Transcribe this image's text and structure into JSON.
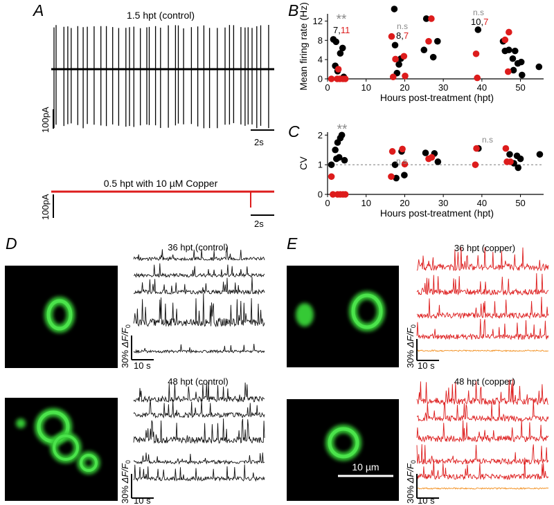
{
  "colors": {
    "control": "#000000",
    "copper": "#dd1c1c",
    "silent": "#f28e1c",
    "sig_gray": "#888888",
    "cell_green": "#3cd23c",
    "cell_bg": "#000000"
  },
  "panels": {
    "A": {
      "label": "A",
      "top_title": "1.5 hpt (control)",
      "top_scale_y": "100pA",
      "top_scale_x": "2s",
      "bottom_title": "0.5 hpt with 10 µM Copper",
      "bottom_scale_y": "100pA",
      "bottom_scale_x": "2s"
    },
    "B": {
      "label": "B",
      "stars": "**",
      "ns1": "n.s",
      "ns2": "n.s",
      "n1_black": "7,",
      "n1_red": "11",
      "n2_black": "8,",
      "n2_red": "7",
      "n3_black": "10,",
      "n3_red": "7"
    },
    "C": {
      "label": "C",
      "stars": "**",
      "ns1": "n.s",
      "ns2": "n.s"
    },
    "D": {
      "label": "D",
      "title1": "36 hpt (control)",
      "title2": "48 hpt (control)",
      "scale_y_pre": "30% ",
      "scale_y_var": "ΔF/F",
      "scale_y_sub": "0",
      "scale_x": "10 s"
    },
    "E": {
      "label": "E",
      "title1": "36 hpt (copper)",
      "title2": "48 hpt (copper)",
      "scale_y_pre": "30% ",
      "scale_y_var": "ΔF/F",
      "scale_y_sub": "0",
      "scale_x": "10 s",
      "scalebar": "10 µm"
    }
  },
  "chart_data": [
    {
      "type": "scatter",
      "panel": "B",
      "xlabel": "Hours post-treatment (hpt)",
      "ylabel": "Mean firing rate (Hz)",
      "xlim": [
        0,
        56
      ],
      "ylim": [
        0,
        13.5
      ],
      "xticks": [
        0,
        10,
        20,
        30,
        40,
        50
      ],
      "yticks": [
        0,
        4,
        8,
        12
      ],
      "grid": false,
      "series": [
        {
          "color": "#000000",
          "points": [
            [
              1.5,
              8.2
            ],
            [
              2.2,
              7.7
            ],
            [
              2.0,
              2.7
            ],
            [
              2.6,
              1.6
            ],
            [
              3.3,
              5.3
            ],
            [
              3.9,
              6.4
            ],
            [
              4.2,
              0.4
            ],
            [
              17.3,
              14.5
            ],
            [
              17.5,
              7.0
            ],
            [
              18.0,
              1.2
            ],
            [
              18.5,
              3.0
            ],
            [
              19.0,
              4.2
            ],
            [
              25.0,
              6.0
            ],
            [
              25.6,
              12.5
            ],
            [
              27.4,
              4.5
            ],
            [
              28.5,
              7.8
            ],
            [
              39.0,
              10.2
            ],
            [
              45.5,
              7.8
            ],
            [
              46.0,
              5.8
            ],
            [
              47.0,
              6.0
            ],
            [
              48.0,
              4.2
            ],
            [
              48.6,
              5.8
            ],
            [
              48.2,
              1.8
            ],
            [
              49.3,
              3.2
            ],
            [
              50.4,
              0.8
            ],
            [
              50.2,
              3.5
            ],
            [
              54.8,
              2.5
            ]
          ]
        },
        {
          "color": "#dd1c1c",
          "points": [
            [
              1.0,
              0
            ],
            [
              2.5,
              0
            ],
            [
              3.2,
              0
            ],
            [
              4.0,
              0
            ],
            [
              4.6,
              0
            ],
            [
              2.8,
              2.0
            ],
            [
              16.6,
              8.8
            ],
            [
              17.0,
              0.4
            ],
            [
              17.6,
              4.1
            ],
            [
              19.8,
              4.7
            ],
            [
              20.1,
              0.6
            ],
            [
              26.2,
              7.8
            ],
            [
              26.9,
              12.5
            ],
            [
              38.5,
              5.2
            ],
            [
              38.8,
              0.2
            ],
            [
              46.0,
              8.1
            ],
            [
              47.0,
              9.7
            ],
            [
              46.8,
              1.5
            ]
          ]
        }
      ]
    },
    {
      "type": "scatter",
      "panel": "C",
      "xlabel": "Hours post-treatment (hpt)",
      "ylabel": "CV",
      "xlim": [
        0,
        56
      ],
      "ylim": [
        0,
        2.1
      ],
      "xticks": [
        0,
        10,
        20,
        30,
        40,
        50
      ],
      "yticks": [
        0,
        1,
        2
      ],
      "reference_line": 1,
      "grid": false,
      "series": [
        {
          "color": "#000000",
          "points": [
            [
              1.0,
              1.0
            ],
            [
              2.0,
              1.5
            ],
            [
              2.3,
              1.2
            ],
            [
              2.6,
              1.75
            ],
            [
              3.3,
              1.9
            ],
            [
              3.7,
              2.0
            ],
            [
              3.0,
              1.25
            ],
            [
              4.4,
              1.15
            ],
            [
              17.5,
              1.0
            ],
            [
              17.8,
              0.55
            ],
            [
              19.2,
              1.45
            ],
            [
              19.9,
              0.65
            ],
            [
              25.4,
              1.4
            ],
            [
              27.7,
              1.38
            ],
            [
              28.6,
              1.1
            ],
            [
              39.1,
              1.55
            ],
            [
              47.2,
              1.35
            ],
            [
              48.3,
              1.05
            ],
            [
              49.1,
              1.3
            ],
            [
              49.4,
              0.9
            ],
            [
              50.0,
              1.2
            ],
            [
              55.0,
              1.35
            ]
          ]
        },
        {
          "color": "#dd1c1c",
          "points": [
            [
              1.0,
              0.6
            ],
            [
              1.4,
              0
            ],
            [
              2.6,
              0
            ],
            [
              3.3,
              0
            ],
            [
              4.0,
              0
            ],
            [
              4.6,
              0
            ],
            [
              16.8,
              1.45
            ],
            [
              16.5,
              0.6
            ],
            [
              19.4,
              1.53
            ],
            [
              20.0,
              1.02
            ],
            [
              26.2,
              1.2
            ],
            [
              27.0,
              1.25
            ],
            [
              38.6,
              1.55
            ],
            [
              38.3,
              1.0
            ],
            [
              46.2,
              1.55
            ],
            [
              46.5,
              1.1
            ],
            [
              47.4,
              1.1
            ]
          ]
        }
      ]
    }
  ]
}
